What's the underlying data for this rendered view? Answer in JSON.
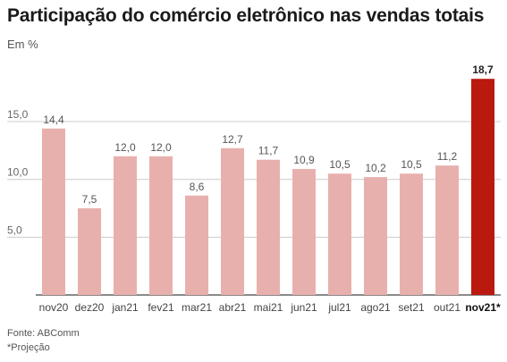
{
  "title": "Participação do comércio eletrônico nas vendas totais",
  "subtitle": "Em %",
  "source": "Fonte: ABComm",
  "note": "*Projeção",
  "colors": {
    "bar": "#e8b0ad",
    "highlight": "#b9190e",
    "grid": "#cccccc",
    "axis": "#666666"
  },
  "chart_data": {
    "type": "bar",
    "categories": [
      "nov20",
      "dez20",
      "jan21",
      "fev21",
      "mar21",
      "abr21",
      "mai21",
      "jun21",
      "jul21",
      "ago21",
      "set21",
      "out21",
      "nov21*"
    ],
    "values": [
      14.4,
      7.5,
      12.0,
      12.0,
      8.6,
      12.7,
      11.7,
      10.9,
      10.5,
      10.2,
      10.5,
      11.2,
      18.7
    ],
    "value_labels": [
      "14,4",
      "7,5",
      "12,0",
      "12,0",
      "8,6",
      "12,7",
      "11,7",
      "10,9",
      "10,5",
      "10,2",
      "10,5",
      "11,2",
      "18,7"
    ],
    "highlight_index": 12,
    "y_ticks": [
      5,
      10,
      15
    ],
    "y_tick_labels": [
      "5,0",
      "10,0",
      "15,0"
    ],
    "ylim": [
      0,
      19.5
    ],
    "xlabel": "",
    "ylabel": "",
    "grid": true,
    "legend": null
  }
}
